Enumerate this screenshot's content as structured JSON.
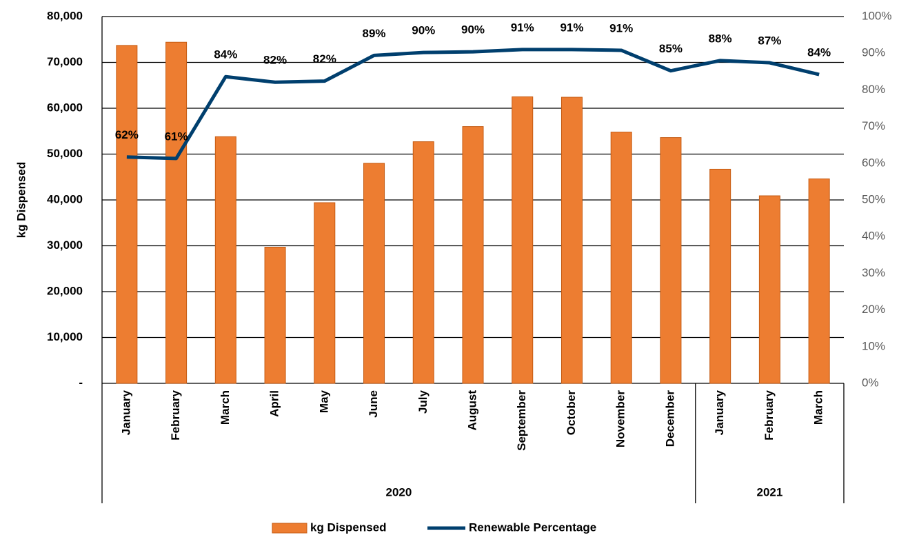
{
  "chart_data": {
    "type": "bar_line",
    "y_label": "kg Dispensed",
    "categories": [
      "January",
      "February",
      "March",
      "April",
      "May",
      "June",
      "July",
      "August",
      "September",
      "October",
      "November",
      "December",
      "January",
      "February",
      "March"
    ],
    "groups": [
      {
        "name": "2020",
        "span": 12
      },
      {
        "name": "2021",
        "span": 3
      }
    ],
    "series": [
      {
        "name": "kg Dispensed",
        "type": "bar",
        "color": "#ED7D31",
        "values": [
          73700,
          74400,
          53800,
          29700,
          39400,
          48000,
          52700,
          56000,
          62500,
          62400,
          54800,
          53600,
          46700,
          40900,
          44600
        ]
      },
      {
        "name": "Renewable Percentage",
        "type": "line",
        "axis": "y2",
        "color": "#003F6E",
        "values": [
          61.7,
          61.3,
          83.6,
          82.1,
          82.4,
          89.4,
          90.2,
          90.4,
          91.0,
          91.0,
          90.8,
          85.2,
          88.0,
          87.4,
          84.2
        ],
        "value_labels": [
          "62%",
          "61%",
          "84%",
          "82%",
          "82%",
          "89%",
          "90%",
          "90%",
          "91%",
          "91%",
          "91%",
          "85%",
          "88%",
          "87%",
          "84%"
        ]
      }
    ],
    "ylim": [
      0,
      80000
    ],
    "yticks": [
      {
        "value": 0,
        "label": "-"
      },
      {
        "value": 10000,
        "label": "10,000"
      },
      {
        "value": 20000,
        "label": "20,000"
      },
      {
        "value": 30000,
        "label": "30,000"
      },
      {
        "value": 40000,
        "label": "40,000"
      },
      {
        "value": 50000,
        "label": "50,000"
      },
      {
        "value": 60000,
        "label": "60,000"
      },
      {
        "value": 70000,
        "label": "70,000"
      },
      {
        "value": 80000,
        "label": "80,000"
      }
    ],
    "y2lim": [
      0,
      100
    ],
    "y2ticks": [
      {
        "value": 0,
        "label": "0%"
      },
      {
        "value": 10,
        "label": "10%"
      },
      {
        "value": 20,
        "label": "20%"
      },
      {
        "value": 30,
        "label": "30%"
      },
      {
        "value": 40,
        "label": "40%"
      },
      {
        "value": 50,
        "label": "50%"
      },
      {
        "value": 60,
        "label": "60%"
      },
      {
        "value": 70,
        "label": "70%"
      },
      {
        "value": 80,
        "label": "80%"
      },
      {
        "value": 90,
        "label": "90%"
      },
      {
        "value": 100,
        "label": "100%"
      }
    ],
    "grid": true,
    "legend": "bottom"
  }
}
